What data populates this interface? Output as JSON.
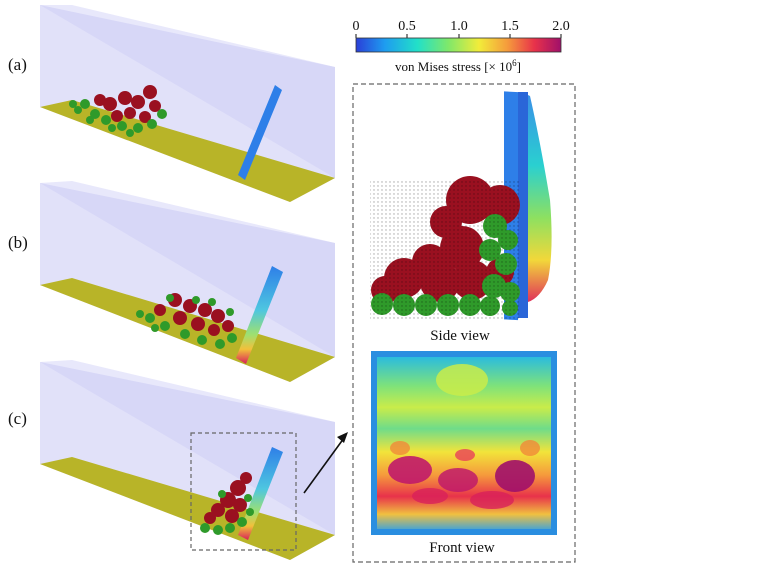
{
  "panels": [
    {
      "label": "(a)"
    },
    {
      "label": "(b)"
    },
    {
      "label": "(c)"
    }
  ],
  "colorbar": {
    "ticks": [
      "0",
      "0.5",
      "1.0",
      "1.5",
      "2.0"
    ],
    "title_prefix": "von Mises stress [× 10",
    "title_exponent": "6",
    "title_suffix": "]",
    "colors": [
      "#2a3fd8",
      "#1e9cf0",
      "#22e0c8",
      "#7fe86a",
      "#f2ec3a",
      "#f59a3c",
      "#e8324a",
      "#a0106a"
    ]
  },
  "views": {
    "side_label": "Side view",
    "front_label": "Front view"
  },
  "colors": {
    "floor": "#b8b428",
    "tank": "#c8c8f4",
    "particle_red": "#9a1020",
    "particle_green": "#2f9a2a",
    "plate_blue": "#2e7fe8",
    "dash": "#666666"
  }
}
